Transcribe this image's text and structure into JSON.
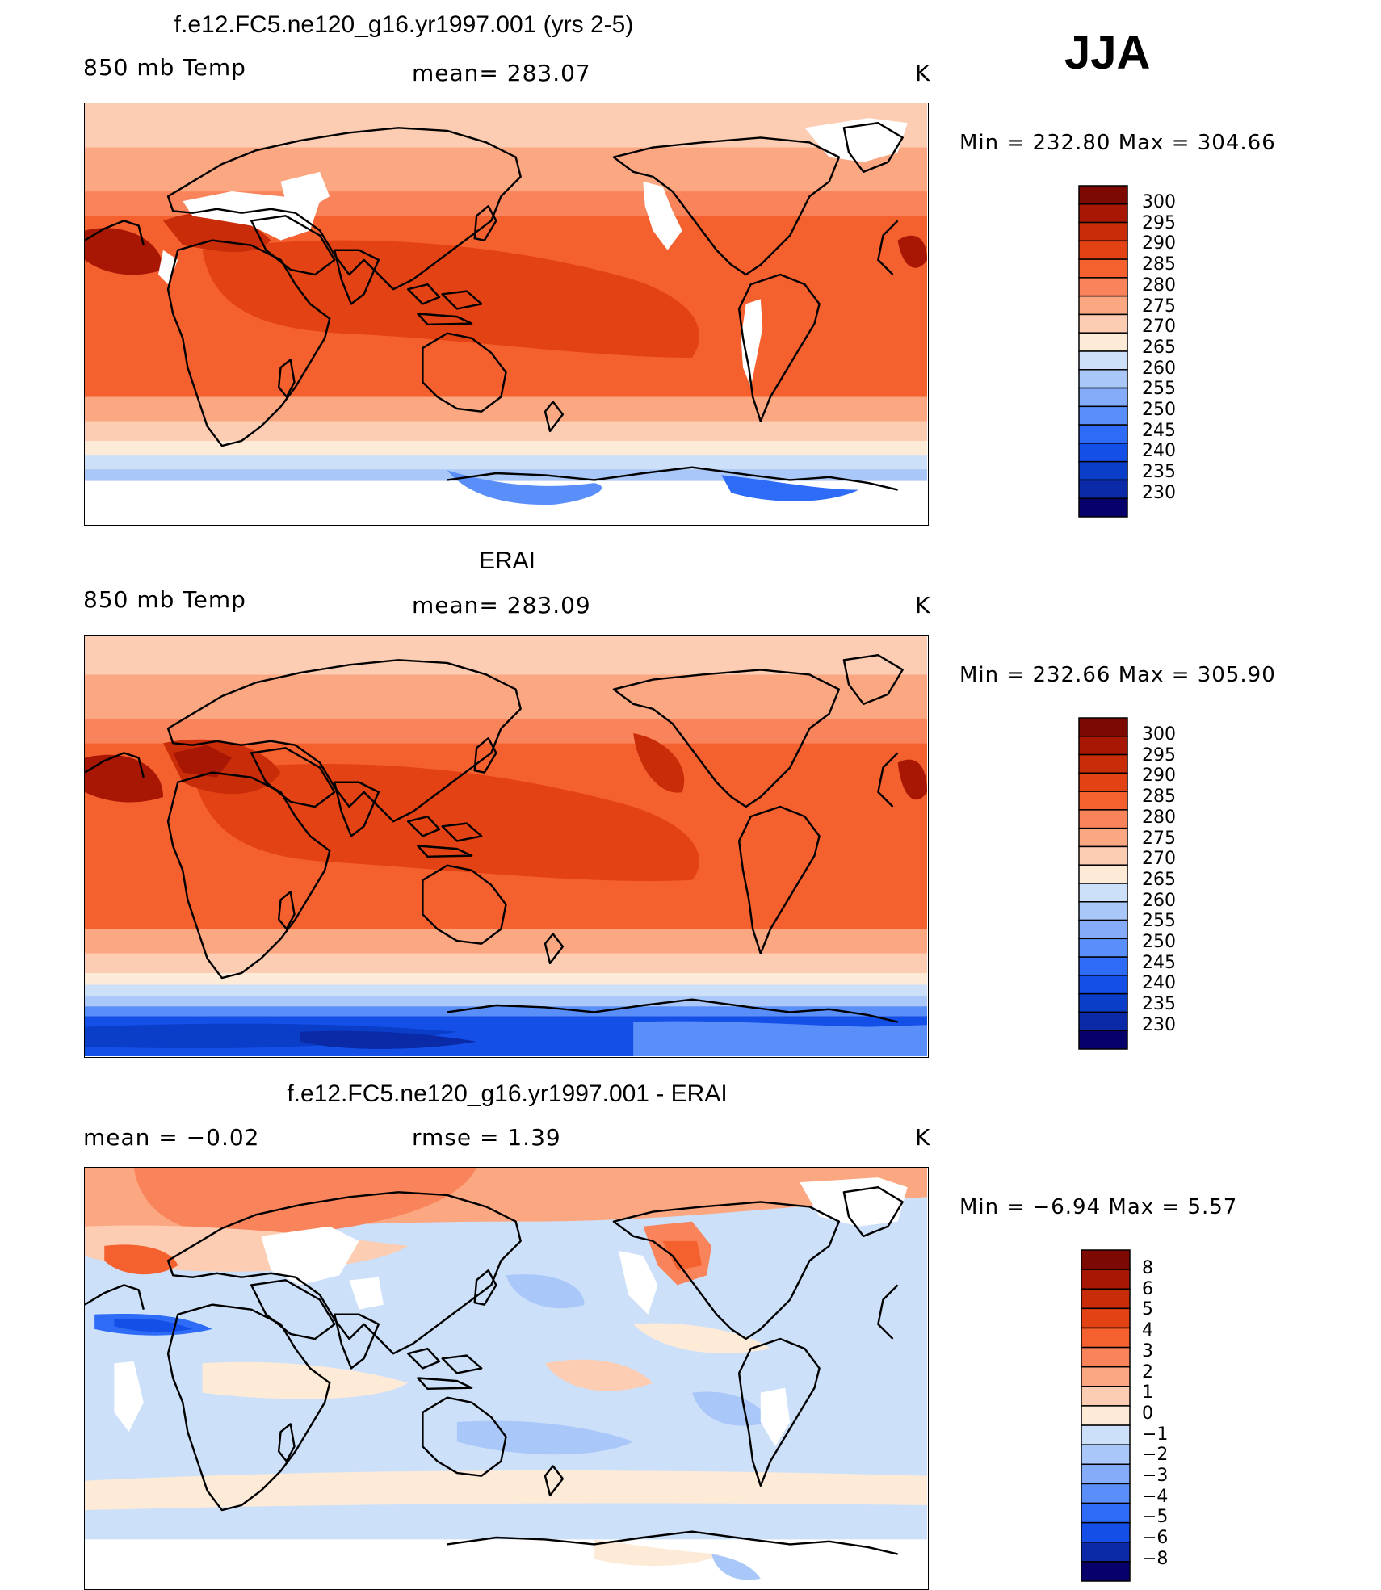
{
  "season": "JJA",
  "colors": {
    "temp_scale": [
      "#08006a",
      "#0a2aa8",
      "#0b3ec8",
      "#1450e8",
      "#2e6cf8",
      "#5a8ef8",
      "#85acf8",
      "#a9c7f8",
      "#cde0f9",
      "#fdebd8",
      "#fccdb2",
      "#fba882",
      "#f9835a",
      "#f5602f",
      "#e34314",
      "#c92c08",
      "#a81704",
      "#7c0a02"
    ],
    "diff_scale": [
      "#08006a",
      "#0a2aa8",
      "#1450e8",
      "#2e6cf8",
      "#5a8ef8",
      "#85acf8",
      "#a9c7f8",
      "#cde0f9",
      "#fdebd8",
      "#fccdb2",
      "#fba882",
      "#f9835a",
      "#f5602f",
      "#e34314",
      "#c92c08",
      "#a81704",
      "#7c0a02"
    ],
    "missing": "#ffffff"
  },
  "panels": [
    {
      "title": "f.e12.FC5.ne120_g16.yr1997.001 (yrs 2-5)",
      "left_label": "850 mb Temp",
      "center_label": "mean= 283.07",
      "units": "K",
      "minmax": "Min = 232.80 Max = 304.66",
      "colorbar_scale": "temp",
      "ticks": [
        "300",
        "295",
        "290",
        "285",
        "280",
        "275",
        "270",
        "265",
        "260",
        "255",
        "250",
        "245",
        "240",
        "235",
        "230"
      ]
    },
    {
      "title": "ERAI",
      "left_label": "850 mb Temp",
      "center_label": "mean= 283.09",
      "units": "K",
      "minmax": "Min = 232.66 Max = 305.90",
      "colorbar_scale": "temp",
      "ticks": [
        "300",
        "295",
        "290",
        "285",
        "280",
        "275",
        "270",
        "265",
        "260",
        "255",
        "250",
        "245",
        "240",
        "235",
        "230"
      ]
    },
    {
      "title": "f.e12.FC5.ne120_g16.yr1997.001 - ERAI",
      "left_label": "mean =   −0.02",
      "center_label": "rmse =    1.39",
      "units": "K",
      "minmax": "Min =   −6.94 Max =    5.57",
      "colorbar_scale": "diff",
      "ticks": [
        "8",
        "6",
        "5",
        "4",
        "3",
        "2",
        "1",
        "0",
        "−1",
        "−2",
        "−3",
        "−4",
        "−5",
        "−6",
        "−8"
      ]
    }
  ]
}
